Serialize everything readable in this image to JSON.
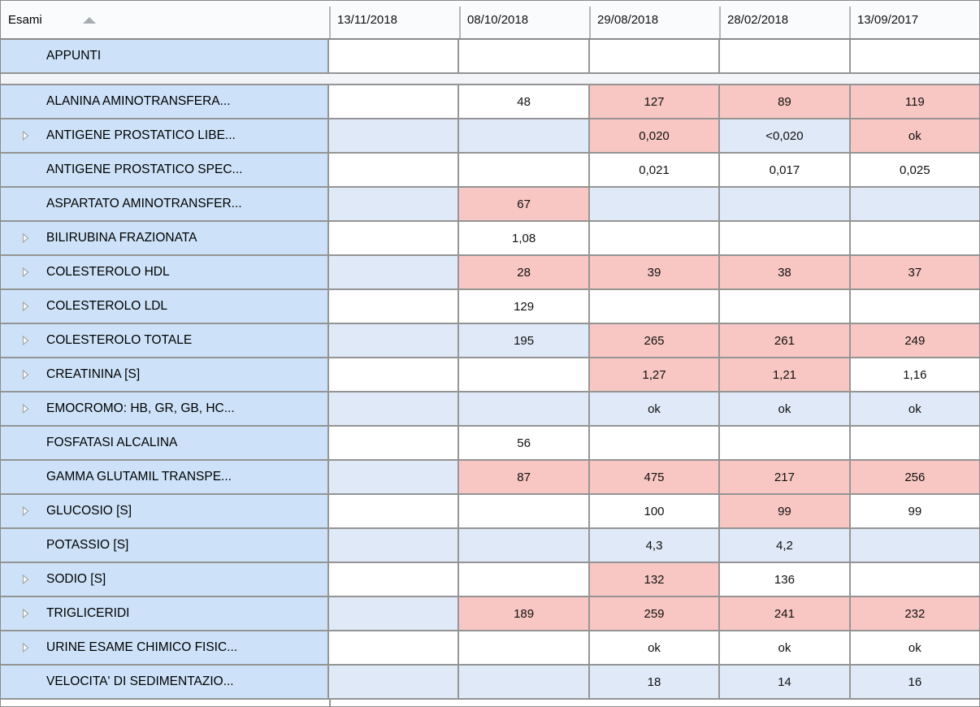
{
  "table": {
    "header": {
      "exams_column_label": "Esami",
      "sort_icon": "sort-ascending-triangle-icon",
      "date_columns": [
        "13/11/2018",
        "08/10/2018",
        "29/08/2018",
        "28/02/2018",
        "13/09/2017"
      ]
    },
    "colors": {
      "label_cell_bg": "#cde2f8",
      "alt_row_bg": "#e0e9f7",
      "abnormal_cell_bg": "#f8c7c3",
      "normal_cell_bg": "#ffffff",
      "separator_row_bg": "#f2f4f8",
      "grid_line": "#949494",
      "header_bg": "#fafbfc"
    },
    "rows": [
      {
        "type": "exam",
        "label": "APPUNTI",
        "expandable": false,
        "alt": false,
        "cells": [
          {
            "t": "",
            "a": false
          },
          {
            "t": "",
            "a": false
          },
          {
            "t": "",
            "a": false
          },
          {
            "t": "",
            "a": false
          },
          {
            "t": "",
            "a": false
          }
        ]
      },
      {
        "type": "separator"
      },
      {
        "type": "exam",
        "label": "ALANINA AMINOTRANSFERA...",
        "expandable": false,
        "alt": false,
        "cells": [
          {
            "t": "",
            "a": false
          },
          {
            "t": "48",
            "a": false
          },
          {
            "t": "127",
            "a": true
          },
          {
            "t": "89",
            "a": true
          },
          {
            "t": "119",
            "a": true
          }
        ]
      },
      {
        "type": "exam",
        "label": "ANTIGENE PROSTATICO LIBE...",
        "expandable": true,
        "alt": true,
        "cells": [
          {
            "t": "",
            "a": false
          },
          {
            "t": "",
            "a": false
          },
          {
            "t": "0,020",
            "a": true
          },
          {
            "t": "<0,020",
            "a": false
          },
          {
            "t": "ok",
            "a": true
          }
        ]
      },
      {
        "type": "exam",
        "label": "ANTIGENE PROSTATICO SPEC...",
        "expandable": false,
        "alt": false,
        "cells": [
          {
            "t": "",
            "a": false
          },
          {
            "t": "",
            "a": false
          },
          {
            "t": "0,021",
            "a": false
          },
          {
            "t": "0,017",
            "a": false
          },
          {
            "t": "0,025",
            "a": false
          }
        ]
      },
      {
        "type": "exam",
        "label": "ASPARTATO AMINOTRANSFER...",
        "expandable": false,
        "alt": true,
        "cells": [
          {
            "t": "",
            "a": false
          },
          {
            "t": "67",
            "a": true
          },
          {
            "t": "",
            "a": false
          },
          {
            "t": "",
            "a": false
          },
          {
            "t": "",
            "a": false
          }
        ]
      },
      {
        "type": "exam",
        "label": "BILIRUBINA FRAZIONATA",
        "expandable": true,
        "alt": false,
        "cells": [
          {
            "t": "",
            "a": false
          },
          {
            "t": "1,08",
            "a": false
          },
          {
            "t": "",
            "a": false
          },
          {
            "t": "",
            "a": false
          },
          {
            "t": "",
            "a": false
          }
        ]
      },
      {
        "type": "exam",
        "label": "COLESTEROLO HDL",
        "expandable": true,
        "alt": true,
        "cells": [
          {
            "t": "",
            "a": false
          },
          {
            "t": "28",
            "a": true
          },
          {
            "t": "39",
            "a": true
          },
          {
            "t": "38",
            "a": true
          },
          {
            "t": "37",
            "a": true
          }
        ]
      },
      {
        "type": "exam",
        "label": "COLESTEROLO LDL",
        "expandable": true,
        "alt": false,
        "cells": [
          {
            "t": "",
            "a": false
          },
          {
            "t": "129",
            "a": false
          },
          {
            "t": "",
            "a": false
          },
          {
            "t": "",
            "a": false
          },
          {
            "t": "",
            "a": false
          }
        ]
      },
      {
        "type": "exam",
        "label": "COLESTEROLO TOTALE",
        "expandable": true,
        "alt": true,
        "cells": [
          {
            "t": "",
            "a": false
          },
          {
            "t": "195",
            "a": false
          },
          {
            "t": "265",
            "a": true
          },
          {
            "t": "261",
            "a": true
          },
          {
            "t": "249",
            "a": true
          }
        ]
      },
      {
        "type": "exam",
        "label": "CREATININA [S]",
        "expandable": true,
        "alt": false,
        "cells": [
          {
            "t": "",
            "a": false
          },
          {
            "t": "",
            "a": false
          },
          {
            "t": "1,27",
            "a": true
          },
          {
            "t": "1,21",
            "a": true
          },
          {
            "t": "1,16",
            "a": false
          }
        ]
      },
      {
        "type": "exam",
        "label": "EMOCROMO: HB, GR, GB, HC...",
        "expandable": true,
        "alt": true,
        "cells": [
          {
            "t": "",
            "a": false
          },
          {
            "t": "",
            "a": false
          },
          {
            "t": "ok",
            "a": false
          },
          {
            "t": "ok",
            "a": false
          },
          {
            "t": "ok",
            "a": false
          }
        ]
      },
      {
        "type": "exam",
        "label": "FOSFATASI ALCALINA",
        "expandable": false,
        "alt": false,
        "cells": [
          {
            "t": "",
            "a": false
          },
          {
            "t": "56",
            "a": false
          },
          {
            "t": "",
            "a": false
          },
          {
            "t": "",
            "a": false
          },
          {
            "t": "",
            "a": false
          }
        ]
      },
      {
        "type": "exam",
        "label": "GAMMA GLUTAMIL TRANSPE...",
        "expandable": false,
        "alt": true,
        "cells": [
          {
            "t": "",
            "a": false
          },
          {
            "t": "87",
            "a": true
          },
          {
            "t": "475",
            "a": true
          },
          {
            "t": "217",
            "a": true
          },
          {
            "t": "256",
            "a": true
          }
        ]
      },
      {
        "type": "exam",
        "label": "GLUCOSIO [S]",
        "expandable": true,
        "alt": false,
        "cells": [
          {
            "t": "",
            "a": false
          },
          {
            "t": "",
            "a": false
          },
          {
            "t": "100",
            "a": false
          },
          {
            "t": "99",
            "a": true
          },
          {
            "t": "99",
            "a": false
          }
        ]
      },
      {
        "type": "exam",
        "label": "POTASSIO [S]",
        "expandable": false,
        "alt": true,
        "cells": [
          {
            "t": "",
            "a": false
          },
          {
            "t": "",
            "a": false
          },
          {
            "t": "4,3",
            "a": false
          },
          {
            "t": "4,2",
            "a": false
          },
          {
            "t": "",
            "a": false
          }
        ]
      },
      {
        "type": "exam",
        "label": "SODIO [S]",
        "expandable": true,
        "alt": false,
        "cells": [
          {
            "t": "",
            "a": false
          },
          {
            "t": "",
            "a": false
          },
          {
            "t": "132",
            "a": true
          },
          {
            "t": "136",
            "a": false
          },
          {
            "t": "",
            "a": false
          }
        ]
      },
      {
        "type": "exam",
        "label": "TRIGLICERIDI",
        "expandable": true,
        "alt": true,
        "cells": [
          {
            "t": "",
            "a": false
          },
          {
            "t": "189",
            "a": true
          },
          {
            "t": "259",
            "a": true
          },
          {
            "t": "241",
            "a": true
          },
          {
            "t": "232",
            "a": true
          }
        ]
      },
      {
        "type": "exam",
        "label": "URINE ESAME CHIMICO FISIC...",
        "expandable": true,
        "alt": false,
        "cells": [
          {
            "t": "",
            "a": false
          },
          {
            "t": "",
            "a": false
          },
          {
            "t": "ok",
            "a": false
          },
          {
            "t": "ok",
            "a": false
          },
          {
            "t": "ok",
            "a": false
          }
        ]
      },
      {
        "type": "exam",
        "label": "VELOCITA' DI SEDIMENTAZIO...",
        "expandable": false,
        "alt": true,
        "cells": [
          {
            "t": "",
            "a": false
          },
          {
            "t": "",
            "a": false
          },
          {
            "t": "18",
            "a": false
          },
          {
            "t": "14",
            "a": false
          },
          {
            "t": "16",
            "a": false
          }
        ]
      }
    ]
  }
}
